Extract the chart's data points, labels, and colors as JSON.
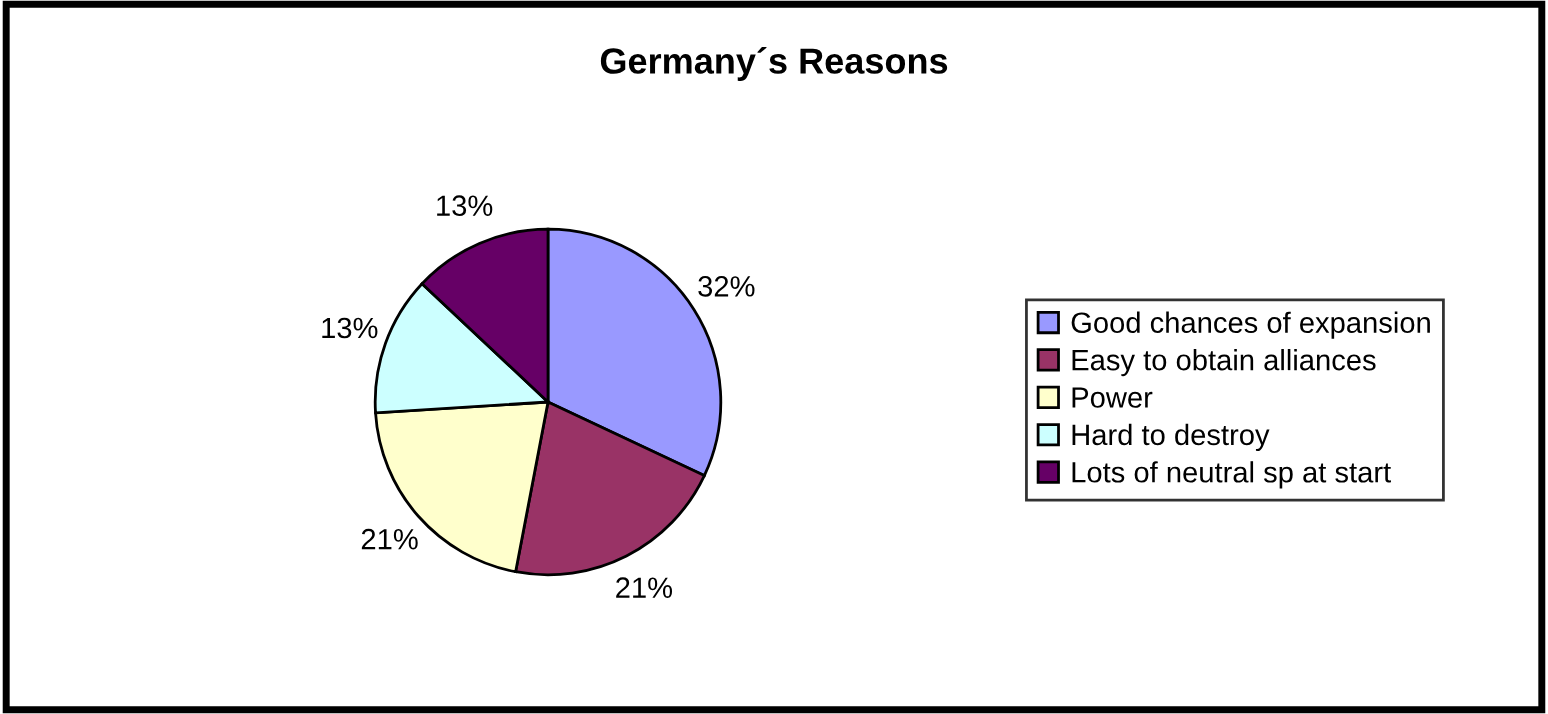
{
  "chart_data": {
    "type": "pie",
    "title": "Germany´s Reasons",
    "categories": [
      "Good chances of expansion",
      "Easy to obtain alliances",
      "Power",
      "Hard to destroy",
      "Lots of neutral sp at start"
    ],
    "values": [
      32,
      21,
      21,
      13,
      13
    ],
    "colors": [
      "#9999ff",
      "#993366",
      "#ffffcc",
      "#ccffff",
      "#660066"
    ],
    "value_labels": [
      "32%",
      "21%",
      "21%",
      "13%",
      "13%"
    ],
    "legend": "right"
  }
}
